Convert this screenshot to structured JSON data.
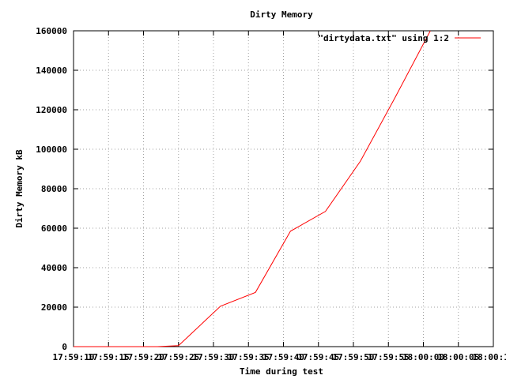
{
  "chart_data": {
    "type": "line",
    "title": "Dirty Memory",
    "xlabel": "Time during test",
    "ylabel": "Dirty Memory kB",
    "xlim": [
      "17:59:10",
      "18:00:10"
    ],
    "ylim": [
      0,
      160000
    ],
    "x_tick_labels": [
      "17:59:10",
      "17:59:15",
      "17:59:20",
      "17:59:25",
      "17:59:30",
      "17:59:35",
      "17:59:40",
      "17:59:45",
      "17:59:50",
      "17:59:55",
      "18:00:00",
      "18:00:05",
      "18:00:10"
    ],
    "y_ticks": [
      0,
      20000,
      40000,
      60000,
      80000,
      100000,
      120000,
      140000,
      160000
    ],
    "grid": true,
    "legend_position": "top-right",
    "series": [
      {
        "name": "\"dirtydata.txt\" using 1:2",
        "color": "#ff0000",
        "x": [
          "17:59:10",
          "17:59:13",
          "17:59:16",
          "17:59:19",
          "17:59:22",
          "17:59:25",
          "17:59:31",
          "17:59:36",
          "17:59:41",
          "17:59:46",
          "17:59:51",
          "17:59:56",
          "18:00:01"
        ],
        "y": [
          0,
          0,
          0,
          0,
          0,
          500,
          20500,
          27500,
          58500,
          68500,
          94000,
          126500,
          160000
        ]
      }
    ]
  }
}
